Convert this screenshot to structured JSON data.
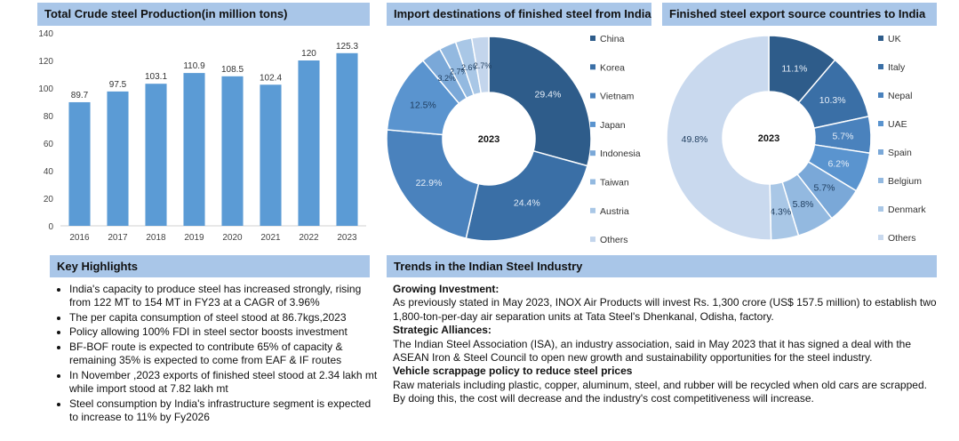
{
  "headers": {
    "crude": "Total Crude steel Production(in million tons)",
    "import": "Import destinations of finished steel from India",
    "export": "Finished steel export source countries to India",
    "highlights": "Key Highlights",
    "trends": "Trends in the Indian Steel Industry"
  },
  "chart_data": [
    {
      "type": "bar",
      "title": "Total Crude steel Production(in million tons)",
      "categories": [
        "2016",
        "2017",
        "2018",
        "2019",
        "2020",
        "2021",
        "2022",
        "2023"
      ],
      "values": [
        89.7,
        97.5,
        103.1,
        110.9,
        108.5,
        102.4,
        120,
        125.3
      ],
      "value_labels": [
        "89.7",
        "97.5",
        "103.1",
        "110.9",
        "108.5",
        "102.4",
        "120",
        "125.3"
      ],
      "ylim": [
        0,
        140
      ],
      "yticks": [
        0,
        20,
        40,
        60,
        80,
        100,
        120,
        140
      ],
      "grid": false,
      "color": "#5b9bd5"
    },
    {
      "type": "pie",
      "title": "Import destinations of finished steel from India",
      "center_label": "2023",
      "labels": [
        "China",
        "Korea",
        "Vietnam",
        "Japan",
        "Indonesia",
        "Taiwan",
        "Austria",
        "Others"
      ],
      "values": [
        29.4,
        24.4,
        22.9,
        12.5,
        3.2,
        2.7,
        2.6,
        2.7
      ],
      "value_labels": [
        "29.4%",
        "24.4%",
        "22.9%",
        "12.5%",
        "3.2%",
        "2.7%",
        "2.6%",
        "2.7%"
      ],
      "colors": [
        "#2e5c8a",
        "#3a6fa6",
        "#4a82bd",
        "#5a94cf",
        "#7aa8d8",
        "#93b9e0",
        "#a9c7e6",
        "#c3d5ec"
      ],
      "legend": "right"
    },
    {
      "type": "pie",
      "title": "Finished steel export source countries to India",
      "center_label": "2023",
      "labels": [
        "UK",
        "Italy",
        "Nepal",
        "UAE",
        "Spain",
        "Belgium",
        "Denmark",
        "Others"
      ],
      "values": [
        11.1,
        10.3,
        5.7,
        6.2,
        5.7,
        5.8,
        4.3,
        49.8
      ],
      "value_labels": [
        "11.1%",
        "10.3%",
        "5.7%",
        "6.2%",
        "5.7%",
        "5.8%",
        "4.3%",
        "49.8%"
      ],
      "colors": [
        "#2e5c8a",
        "#3a6fa6",
        "#4a82bd",
        "#5a94cf",
        "#7aa8d8",
        "#93b9e0",
        "#a9c7e6",
        "#c9d9ee"
      ],
      "legend": "right"
    }
  ],
  "highlights": [
    "India's capacity to produce steel has increased strongly, rising from 122 MT to 154 MT in FY23 at a CAGR of 3.96%",
    "The per capita consumption of steel stood at 86.7kgs,2023",
    "Policy allowing 100% FDI in steel sector boosts investment",
    "BF-BOF route is expected to contribute 65% of capacity & remaining 35% is expected to come from EAF & IF routes",
    "In November ,2023 exports of finished steel stood at 2.34 lakh mt  while import stood at 7.82 lakh mt",
    "Steel consumption by India's infrastructure segment is expected to increase to 11% by Fy2026"
  ],
  "trends": [
    {
      "heading": "Growing Investment:",
      "text": "As previously stated in May 2023, INOX Air Products will invest Rs. 1,300 crore (US$ 157.5 million) to establish two 1,800-ton-per-day air separation units at Tata Steel's Dhenkanal, Odisha, factory."
    },
    {
      "heading": "Strategic Alliances:",
      "text": "The Indian Steel Association (ISA), an industry association, said in May 2023 that it has signed a deal with the ASEAN Iron & Steel Council to open new growth and sustainability opportunities for the steel industry."
    },
    {
      "heading": "Vehicle scrappage policy to reduce steel prices",
      "text": "Raw materials including plastic, copper, aluminum, steel, and rubber will be recycled when old cars are scrapped. By doing this, the cost  will decrease and the industry's cost competitiveness will increase."
    }
  ]
}
